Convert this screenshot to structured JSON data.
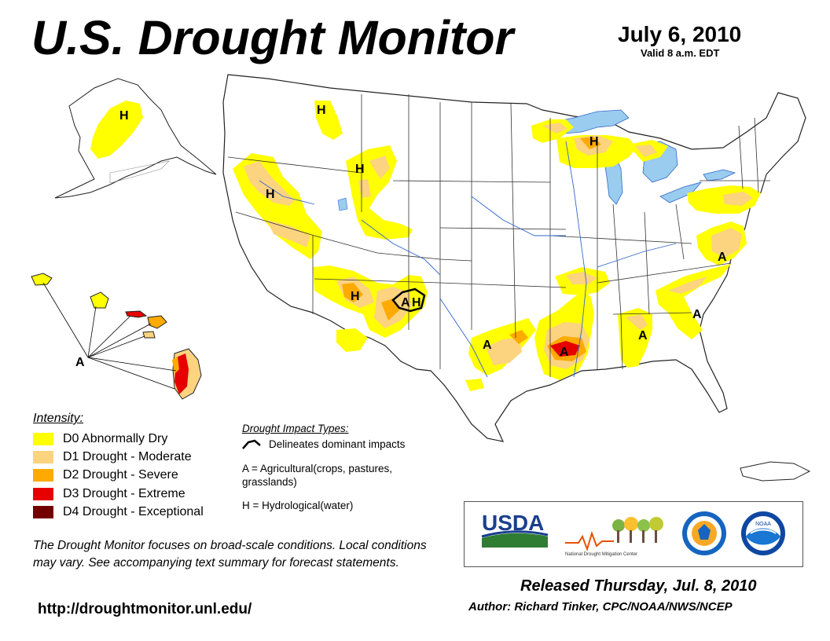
{
  "header": {
    "title": "U.S. Drought Monitor",
    "date": "July 6, 2010",
    "valid": "Valid 8 a.m. EDT"
  },
  "colors": {
    "d0": "#ffff00",
    "d1": "#fcd37f",
    "d2": "#ffaa00",
    "d3": "#e60000",
    "d4": "#730000",
    "water": "#99ccee",
    "state_line": "#333333",
    "county_line": "#cccccc",
    "river": "#3366cc"
  },
  "legend": {
    "title": "Intensity:",
    "items": [
      {
        "code": "D0",
        "label": "D0 Abnormally Dry",
        "color": "#ffff00"
      },
      {
        "code": "D1",
        "label": "D1 Drought - Moderate",
        "color": "#fcd37f"
      },
      {
        "code": "D2",
        "label": "D2 Drought - Severe",
        "color": "#ffaa00"
      },
      {
        "code": "D3",
        "label": "D3 Drought - Extreme",
        "color": "#e60000"
      },
      {
        "code": "D4",
        "label": "D4 Drought - Exceptional",
        "color": "#730000"
      }
    ]
  },
  "impact": {
    "title": "Drought Impact Types:",
    "delineates": "Delineates dominant impacts",
    "agricultural": "A = Agricultural(crops, pastures, grasslands)",
    "hydrological": "H = Hydrological(water)"
  },
  "map_labels": {
    "A": "A",
    "H": "H"
  },
  "footer": {
    "note": "The Drought Monitor focuses on broad-scale conditions. Local conditions may vary. See accompanying text summary for forecast statements.",
    "url": "http://droughtmonitor.unl.edu/",
    "released": "Released Thursday, Jul. 8, 2010",
    "author": "Author: Richard Tinker, CPC/NOAA/NWS/NCEP"
  },
  "logos": {
    "usda": "USDA",
    "ndmc": "National Drought Mitigation Center",
    "noaa": "NOAA"
  }
}
